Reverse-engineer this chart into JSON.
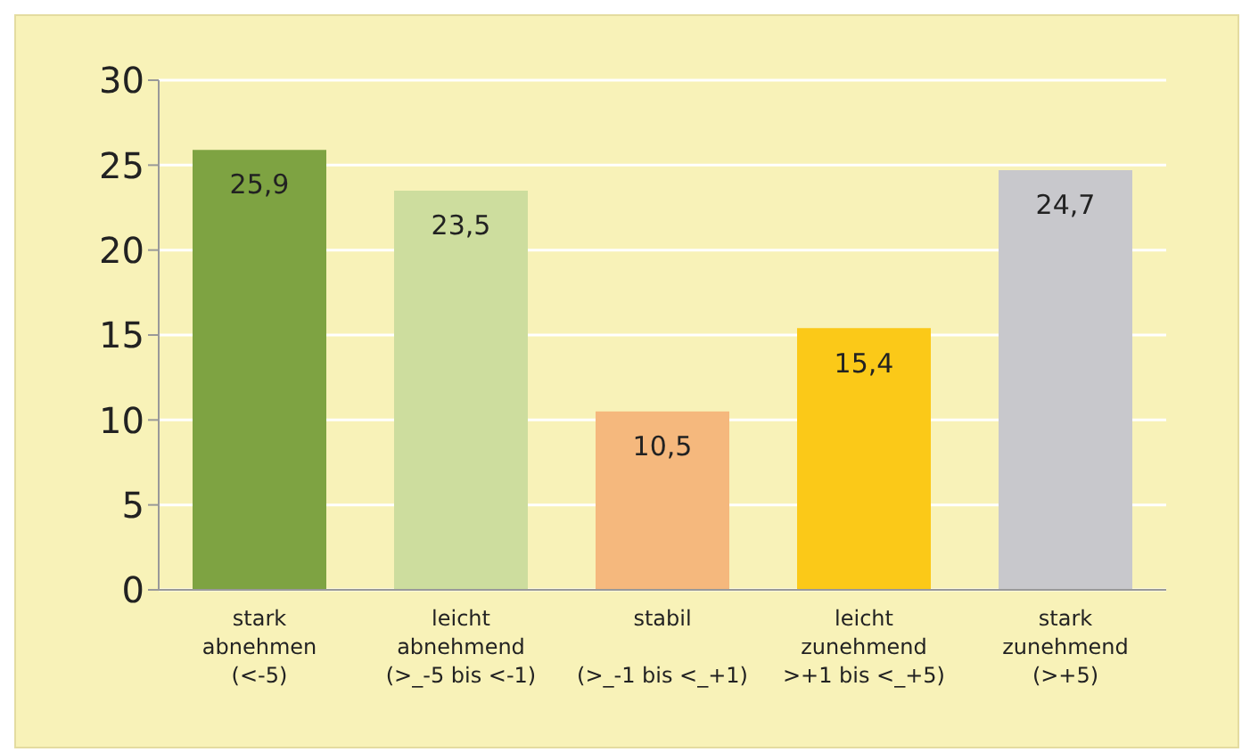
{
  "chart_data": {
    "type": "bar",
    "categories": [
      "stark\nabnehmen\n(<-5)",
      "leicht\nabnehmend\n(>_-5 bis <-1)",
      "stabil\n\n(>_-1 bis <_+1)",
      "leicht\nzunehmend\n>+1 bis <_+5)",
      "stark\nzunehmend\n(>+5)"
    ],
    "values": [
      25.9,
      23.5,
      10.5,
      15.4,
      24.7
    ],
    "value_labels": [
      "25,9",
      "23,5",
      "10,5",
      "15,4",
      "24,7"
    ],
    "colors": [
      "#7ea342",
      "#cddd9e",
      "#f5b87d",
      "#fbc918",
      "#c8c8cc"
    ],
    "ylim": [
      0,
      30
    ],
    "yticks": [
      0,
      5,
      10,
      15,
      20,
      25,
      30
    ],
    "grid": "y"
  }
}
